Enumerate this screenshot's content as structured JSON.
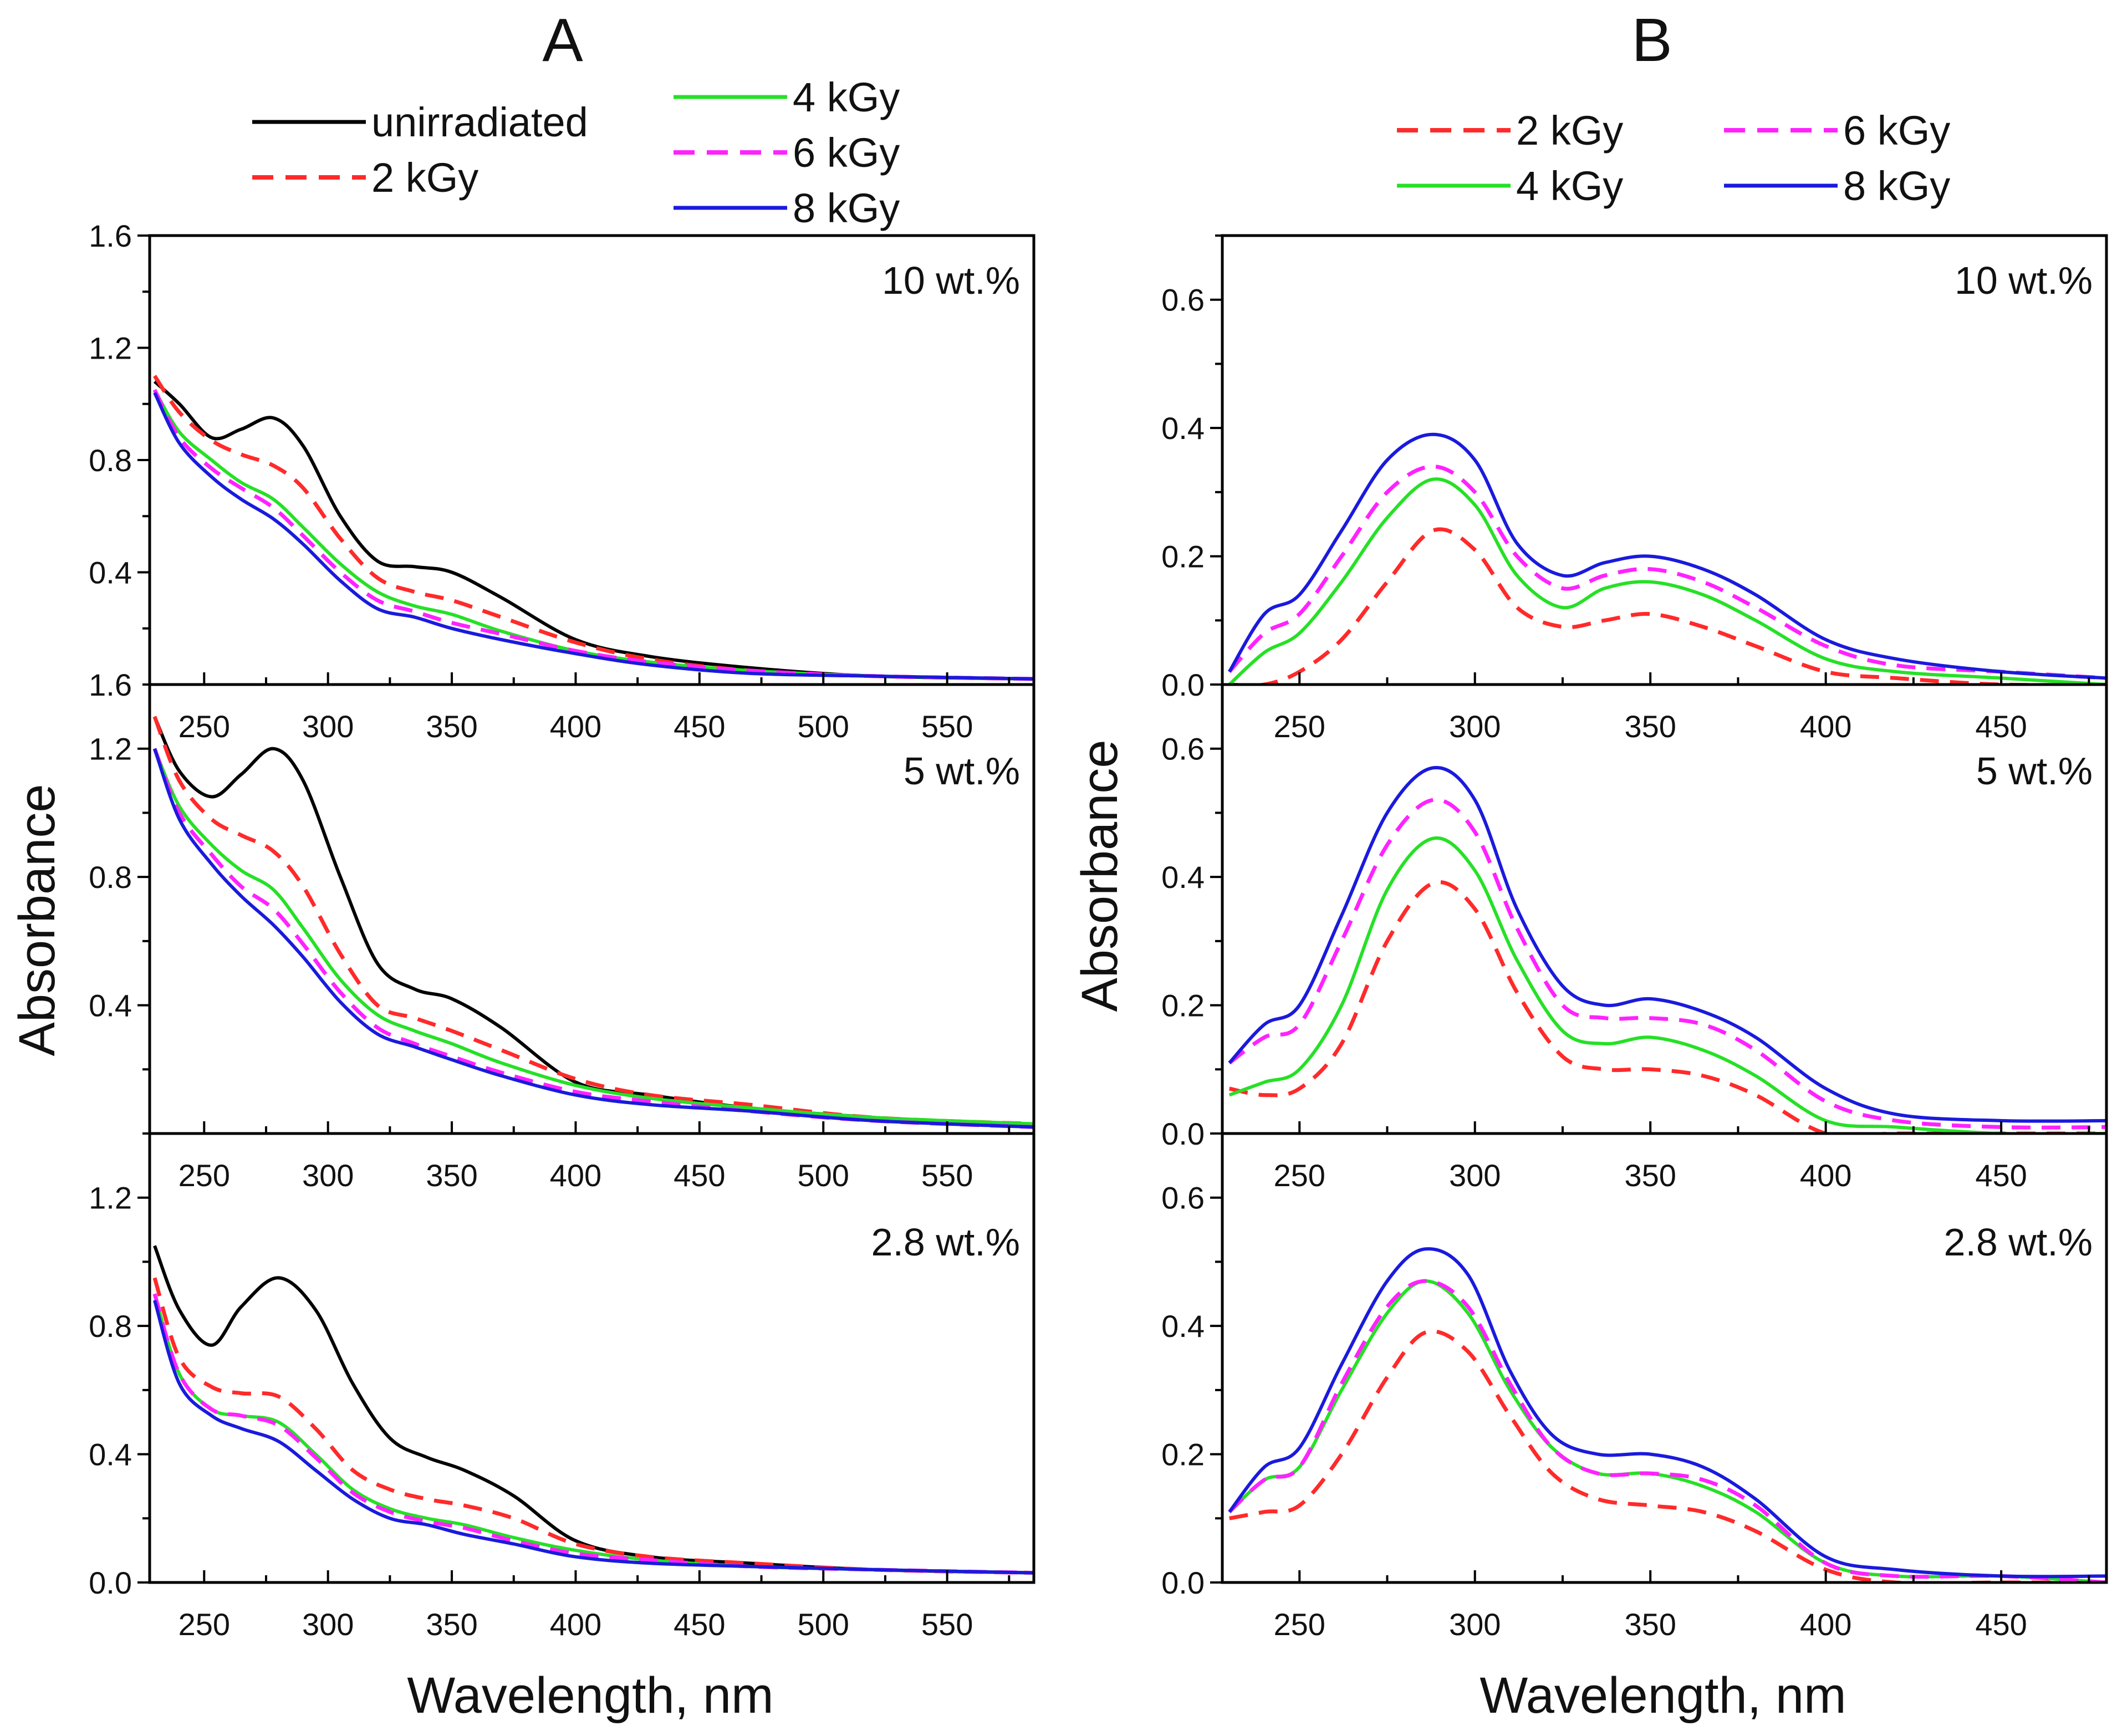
{
  "colors": {
    "unirradiated": "#000000",
    "2 kGy": "#ff2a2a",
    "4 kGy": "#26e026",
    "6 kGy": "#ff22ff",
    "8 kGy": "#1a1add"
  },
  "chart_data": [
    {
      "panel": "A",
      "title": "A",
      "type": "line",
      "xlabel": "Wavelength, nm",
      "ylabel": "Absorbance",
      "xlim": [
        228,
        585
      ],
      "xticks": [
        250,
        300,
        350,
        400,
        450,
        500,
        550
      ],
      "legend": [
        {
          "name": "unirradiated",
          "style": "solid"
        },
        {
          "name": "2 kGy",
          "style": "dashed"
        },
        {
          "name": "4 kGy",
          "style": "solid"
        },
        {
          "name": "6 kGy",
          "style": "dashed"
        },
        {
          "name": "8 kGy",
          "style": "solid"
        }
      ],
      "subplots": [
        {
          "annotation": "10 wt.%",
          "ylim": [
            0.0,
            1.6
          ],
          "yticks": [
            0.4,
            0.8,
            1.2,
            1.6
          ],
          "ytick_labels": [
            "0.4",
            "0.8",
            "1.2",
            "1.6"
          ],
          "bottom_label": "1.6",
          "x": [
            230,
            240,
            253,
            265,
            278,
            290,
            305,
            320,
            335,
            350,
            370,
            400,
            430,
            470,
            520,
            585
          ],
          "series": [
            {
              "name": "unirradiated",
              "values": [
                1.08,
                1.0,
                0.88,
                0.91,
                0.95,
                0.85,
                0.6,
                0.44,
                0.42,
                0.4,
                0.31,
                0.16,
                0.1,
                0.06,
                0.03,
                0.02
              ]
            },
            {
              "name": "2 kGy",
              "values": [
                1.1,
                0.97,
                0.87,
                0.82,
                0.78,
                0.7,
                0.52,
                0.38,
                0.33,
                0.3,
                0.24,
                0.15,
                0.09,
                0.05,
                0.03,
                0.02
              ]
            },
            {
              "name": "4 kGy",
              "values": [
                1.05,
                0.9,
                0.8,
                0.72,
                0.66,
                0.56,
                0.43,
                0.33,
                0.28,
                0.25,
                0.19,
                0.12,
                0.08,
                0.05,
                0.03,
                0.02
              ]
            },
            {
              "name": "6 kGy",
              "values": [
                1.05,
                0.88,
                0.77,
                0.7,
                0.63,
                0.53,
                0.4,
                0.3,
                0.26,
                0.22,
                0.18,
                0.12,
                0.08,
                0.05,
                0.03,
                0.02
              ]
            },
            {
              "name": "8 kGy",
              "values": [
                1.04,
                0.86,
                0.74,
                0.66,
                0.59,
                0.5,
                0.37,
                0.27,
                0.24,
                0.2,
                0.16,
                0.11,
                0.07,
                0.04,
                0.03,
                0.02
              ]
            }
          ]
        },
        {
          "annotation": "5 wt.%",
          "ylim": [
            0.0,
            1.4
          ],
          "yticks": [
            0.4,
            0.8,
            1.2
          ],
          "ytick_labels": [
            "0.4",
            "0.8",
            "1.2"
          ],
          "x": [
            230,
            240,
            253,
            265,
            278,
            290,
            305,
            320,
            335,
            350,
            370,
            400,
            430,
            470,
            520,
            585
          ],
          "series": [
            {
              "name": "unirradiated",
              "values": [
                1.3,
                1.13,
                1.05,
                1.12,
                1.2,
                1.1,
                0.8,
                0.53,
                0.45,
                0.42,
                0.33,
                0.16,
                0.12,
                0.08,
                0.05,
                0.02
              ]
            },
            {
              "name": "2 kGy",
              "values": [
                1.3,
                1.1,
                0.98,
                0.93,
                0.88,
                0.77,
                0.56,
                0.4,
                0.36,
                0.32,
                0.26,
                0.17,
                0.12,
                0.09,
                0.05,
                0.03
              ]
            },
            {
              "name": "4 kGy",
              "values": [
                1.2,
                1.02,
                0.9,
                0.82,
                0.76,
                0.64,
                0.48,
                0.37,
                0.32,
                0.28,
                0.22,
                0.15,
                0.11,
                0.08,
                0.05,
                0.03
              ]
            },
            {
              "name": "6 kGy",
              "values": [
                1.2,
                1.0,
                0.87,
                0.77,
                0.7,
                0.59,
                0.44,
                0.33,
                0.28,
                0.24,
                0.19,
                0.13,
                0.1,
                0.07,
                0.04,
                0.02
              ]
            },
            {
              "name": "8 kGy",
              "values": [
                1.2,
                0.98,
                0.84,
                0.74,
                0.65,
                0.55,
                0.41,
                0.31,
                0.27,
                0.23,
                0.18,
                0.12,
                0.09,
                0.07,
                0.04,
                0.02
              ]
            }
          ]
        },
        {
          "annotation": "2.8 wt.%",
          "ylim": [
            0.0,
            1.4
          ],
          "yticks": [
            0.0,
            0.4,
            0.8,
            1.2
          ],
          "ytick_labels": [
            "0.0",
            "0.4",
            "0.8",
            "1.2"
          ],
          "x": [
            230,
            240,
            253,
            265,
            280,
            295,
            310,
            325,
            340,
            355,
            375,
            400,
            430,
            470,
            520,
            585
          ],
          "series": [
            {
              "name": "unirradiated",
              "values": [
                1.05,
                0.85,
                0.74,
                0.86,
                0.95,
                0.85,
                0.62,
                0.45,
                0.39,
                0.35,
                0.27,
                0.13,
                0.08,
                0.06,
                0.04,
                0.03
              ]
            },
            {
              "name": "2 kGy",
              "values": [
                0.95,
                0.7,
                0.61,
                0.59,
                0.58,
                0.48,
                0.35,
                0.29,
                0.26,
                0.24,
                0.2,
                0.12,
                0.08,
                0.06,
                0.04,
                0.03
              ]
            },
            {
              "name": "4 kGy",
              "values": [
                0.9,
                0.65,
                0.54,
                0.52,
                0.5,
                0.4,
                0.29,
                0.23,
                0.2,
                0.18,
                0.14,
                0.1,
                0.07,
                0.05,
                0.04,
                0.03
              ]
            },
            {
              "name": "6 kGy",
              "values": [
                0.9,
                0.65,
                0.54,
                0.52,
                0.49,
                0.39,
                0.28,
                0.22,
                0.19,
                0.17,
                0.13,
                0.09,
                0.07,
                0.05,
                0.04,
                0.03
              ]
            },
            {
              "name": "8 kGy",
              "values": [
                0.88,
                0.62,
                0.52,
                0.48,
                0.44,
                0.35,
                0.26,
                0.2,
                0.18,
                0.15,
                0.12,
                0.08,
                0.06,
                0.05,
                0.04,
                0.03
              ]
            }
          ]
        }
      ]
    },
    {
      "panel": "B",
      "title": "B",
      "type": "line",
      "xlabel": "Wavelength, nm",
      "ylabel": "Absorbance",
      "xlim": [
        228,
        480
      ],
      "xticks": [
        250,
        300,
        350,
        400,
        450
      ],
      "legend": [
        {
          "name": "2 kGy",
          "style": "dashed"
        },
        {
          "name": "4 kGy",
          "style": "solid"
        },
        {
          "name": "6 kGy",
          "style": "dashed"
        },
        {
          "name": "8 kGy",
          "style": "solid"
        }
      ],
      "subplots": [
        {
          "annotation": "10 wt.%",
          "ylim": [
            0.0,
            0.7
          ],
          "yticks": [
            0.0,
            0.2,
            0.4,
            0.6
          ],
          "ytick_labels": [
            "0.0",
            "0.2",
            "0.4",
            "0.6"
          ],
          "x": [
            230,
            240,
            250,
            262,
            275,
            288,
            300,
            312,
            325,
            337,
            350,
            365,
            380,
            400,
            420,
            450,
            480
          ],
          "series": [
            {
              "name": "2 kGy",
              "values": [
                0.0,
                0.0,
                0.02,
                0.07,
                0.16,
                0.24,
                0.21,
                0.12,
                0.09,
                0.1,
                0.11,
                0.09,
                0.06,
                0.02,
                0.01,
                0.0,
                0.0
              ]
            },
            {
              "name": "4 kGy",
              "values": [
                0.0,
                0.05,
                0.08,
                0.16,
                0.26,
                0.32,
                0.28,
                0.17,
                0.12,
                0.15,
                0.16,
                0.14,
                0.1,
                0.04,
                0.02,
                0.01,
                0.0
              ]
            },
            {
              "name": "6 kGy",
              "values": [
                0.02,
                0.08,
                0.11,
                0.2,
                0.3,
                0.34,
                0.3,
                0.2,
                0.15,
                0.17,
                0.18,
                0.16,
                0.12,
                0.06,
                0.03,
                0.02,
                0.01
              ]
            },
            {
              "name": "8 kGy",
              "values": [
                0.02,
                0.11,
                0.14,
                0.24,
                0.35,
                0.39,
                0.35,
                0.22,
                0.17,
                0.19,
                0.2,
                0.18,
                0.14,
                0.07,
                0.04,
                0.02,
                0.01
              ]
            }
          ]
        },
        {
          "annotation": "5 wt.%",
          "ylim": [
            0.0,
            0.7
          ],
          "yticks": [
            0.0,
            0.2,
            0.4,
            0.6
          ],
          "ytick_labels": [
            "0.0",
            "0.2",
            "0.4",
            "0.6"
          ],
          "x": [
            230,
            240,
            250,
            262,
            275,
            288,
            300,
            312,
            325,
            337,
            350,
            365,
            380,
            400,
            420,
            450,
            480
          ],
          "series": [
            {
              "name": "2 kGy",
              "values": [
                0.07,
                0.06,
                0.07,
                0.14,
                0.3,
                0.39,
                0.35,
                0.22,
                0.12,
                0.1,
                0.1,
                0.09,
                0.06,
                0.0,
                0.0,
                0.0,
                0.0
              ]
            },
            {
              "name": "4 kGy",
              "values": [
                0.06,
                0.08,
                0.1,
                0.2,
                0.38,
                0.46,
                0.41,
                0.27,
                0.16,
                0.14,
                0.15,
                0.13,
                0.09,
                0.02,
                0.01,
                0.0,
                0.0
              ]
            },
            {
              "name": "6 kGy",
              "values": [
                0.11,
                0.15,
                0.17,
                0.3,
                0.45,
                0.52,
                0.47,
                0.32,
                0.2,
                0.18,
                0.18,
                0.17,
                0.13,
                0.05,
                0.02,
                0.01,
                0.01
              ]
            },
            {
              "name": "8 kGy",
              "values": [
                0.11,
                0.17,
                0.2,
                0.34,
                0.5,
                0.57,
                0.52,
                0.35,
                0.23,
                0.2,
                0.21,
                0.19,
                0.15,
                0.07,
                0.03,
                0.02,
                0.02
              ]
            }
          ]
        },
        {
          "annotation": "2.8 wt.%",
          "ylim": [
            0.0,
            0.7
          ],
          "yticks": [
            0.0,
            0.2,
            0.4,
            0.6
          ],
          "ytick_labels": [
            "0.0",
            "0.2",
            "0.4",
            "0.6"
          ],
          "x": [
            230,
            240,
            250,
            262,
            275,
            286,
            298,
            310,
            322,
            335,
            350,
            365,
            380,
            400,
            420,
            450,
            480
          ],
          "series": [
            {
              "name": "2 kGy",
              "values": [
                0.1,
                0.11,
                0.12,
                0.2,
                0.32,
                0.39,
                0.36,
                0.26,
                0.17,
                0.13,
                0.12,
                0.11,
                0.08,
                0.02,
                0.0,
                0.0,
                0.0
              ]
            },
            {
              "name": "4 kGy",
              "values": [
                0.11,
                0.16,
                0.18,
                0.3,
                0.42,
                0.47,
                0.42,
                0.3,
                0.21,
                0.17,
                0.17,
                0.15,
                0.11,
                0.03,
                0.01,
                0.01,
                0.0
              ]
            },
            {
              "name": "6 kGy",
              "values": [
                0.11,
                0.16,
                0.18,
                0.31,
                0.43,
                0.47,
                0.43,
                0.31,
                0.21,
                0.17,
                0.17,
                0.16,
                0.12,
                0.03,
                0.01,
                0.01,
                0.0
              ]
            },
            {
              "name": "8 kGy",
              "values": [
                0.11,
                0.18,
                0.21,
                0.34,
                0.47,
                0.52,
                0.48,
                0.33,
                0.23,
                0.2,
                0.2,
                0.18,
                0.13,
                0.04,
                0.02,
                0.01,
                0.01
              ]
            }
          ]
        }
      ]
    }
  ]
}
